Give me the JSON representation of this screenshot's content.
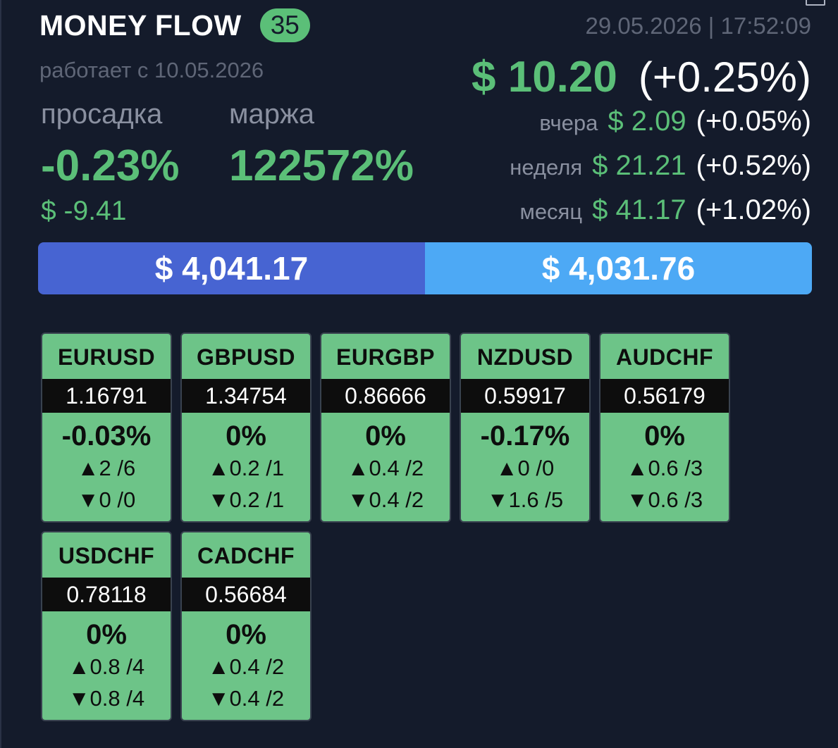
{
  "header": {
    "title": "MONEY FLOW",
    "badge_count": "35",
    "since": "работает с 10.05.2026",
    "datetime": "29.05.2026 | 17:52:09"
  },
  "metrics": {
    "drawdown_label": "просадка",
    "drawdown_value": "-0.23%",
    "drawdown_money": "$ -9.41",
    "margin_label": "маржа",
    "margin_value": "122572%"
  },
  "profit": {
    "amount": "$ 10.20",
    "percent": "(+0.25%)",
    "yesterday": {
      "label": "вчера",
      "amount": "$ 2.09",
      "percent": "(+0.05%)"
    },
    "week": {
      "label": "неделя",
      "amount": "$ 21.21",
      "percent": "(+0.52%)"
    },
    "month": {
      "label": "месяц",
      "amount": "$ 41.17",
      "percent": "(+1.02%)"
    }
  },
  "balance": {
    "left": "$ 4,041.17",
    "right": "$ 4,031.76"
  },
  "pairs": [
    {
      "symbol": "EURUSD",
      "price": "1.16791",
      "change": "-0.03%",
      "up": "▲2 /6",
      "down": "▼0 /0"
    },
    {
      "symbol": "GBPUSD",
      "price": "1.34754",
      "change": "0%",
      "up": "▲0.2 /1",
      "down": "▼0.2 /1"
    },
    {
      "symbol": "EURGBP",
      "price": "0.86666",
      "change": "0%",
      "up": "▲0.4 /2",
      "down": "▼0.4 /2"
    },
    {
      "symbol": "NZDUSD",
      "price": "0.59917",
      "change": "-0.17%",
      "up": "▲0 /0",
      "down": "▼1.6 /5"
    },
    {
      "symbol": "AUDCHF",
      "price": "0.56179",
      "change": "0%",
      "up": "▲0.6 /3",
      "down": "▼0.6 /3"
    },
    {
      "symbol": "USDCHF",
      "price": "0.78118",
      "change": "0%",
      "up": "▲0.8 /4",
      "down": "▼0.8 /4"
    },
    {
      "symbol": "CADCHF",
      "price": "0.56684",
      "change": "0%",
      "up": "▲0.4 /2",
      "down": "▼0.4 /2"
    }
  ],
  "colors": {
    "background": "#141b2b",
    "positive": "#5bbf78",
    "card": "#6dc488",
    "balance_left": "#4764d2",
    "balance_right": "#4da9f5"
  }
}
